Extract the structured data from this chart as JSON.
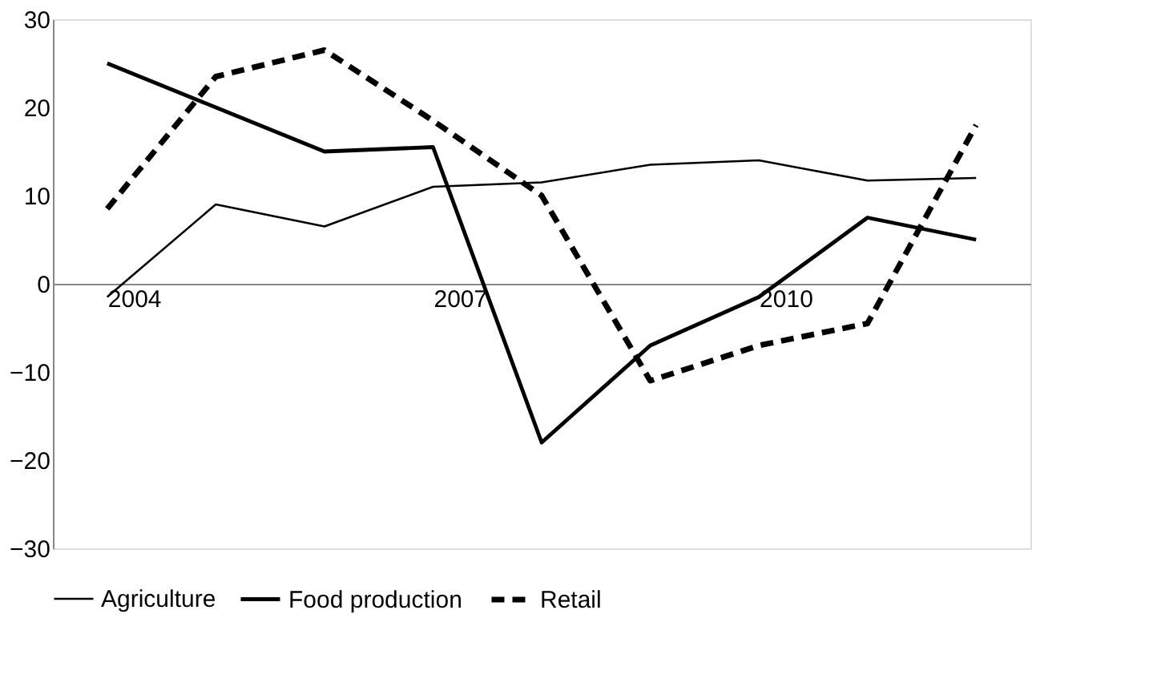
{
  "chart_data": {
    "type": "line",
    "categories": [
      "2004",
      null,
      null,
      "2007",
      null,
      null,
      "2010",
      null,
      null
    ],
    "series": [
      {
        "name": "Agriculture",
        "color": "#000000",
        "line_style": "solid",
        "values": [
          -1.5,
          9,
          6.5,
          11,
          11.5,
          13.5,
          14,
          11.7,
          12
        ]
      },
      {
        "name": "Food production",
        "color": "#000000",
        "line_style": "solid",
        "values": [
          25,
          20,
          15,
          15.5,
          -18,
          -7,
          -1.5,
          7.5,
          5
        ]
      },
      {
        "name": "Retail",
        "color": "#000000",
        "line_style": "dashed",
        "values": [
          8.5,
          23.5,
          26.5,
          18.5,
          10,
          -11,
          -7,
          -4.5,
          18
        ]
      }
    ],
    "ylim": [
      -30,
      30
    ],
    "yticks": [
      -30,
      -20,
      -10,
      0,
      10,
      20,
      30
    ],
    "grid": false,
    "legend": "bottom",
    "marker": "none"
  }
}
